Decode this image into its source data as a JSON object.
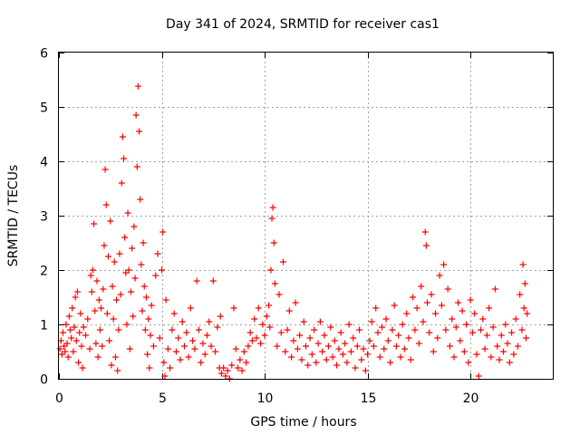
{
  "chart_data": {
    "type": "scatter",
    "title": "Day 341 of 2024, SRMTID for receiver cas1",
    "xlabel": "GPS time / hours",
    "ylabel": "SRMTID / TECUs",
    "xlim": [
      0,
      24
    ],
    "ylim": [
      0,
      6
    ],
    "xticks": [
      0,
      5,
      10,
      15,
      20
    ],
    "xtick_labels": [
      "0",
      "5",
      "10",
      "15",
      "20"
    ],
    "yticks": [
      0,
      1,
      2,
      3,
      4,
      5,
      6
    ],
    "ytick_labels": [
      "0",
      "1",
      "2",
      "3",
      "4",
      "5",
      "6"
    ],
    "grid": true,
    "marker": "+",
    "color": "#ff0000",
    "series": [
      {
        "name": "SRMTID",
        "points": [
          [
            0.05,
            0.55
          ],
          [
            0.1,
            0.7
          ],
          [
            0.15,
            0.45
          ],
          [
            0.2,
            0.85
          ],
          [
            0.25,
            0.6
          ],
          [
            0.3,
            0.5
          ],
          [
            0.35,
            1.0
          ],
          [
            0.4,
            0.65
          ],
          [
            0.45,
            0.4
          ],
          [
            0.5,
            1.15
          ],
          [
            0.55,
            0.9
          ],
          [
            0.6,
            0.75
          ],
          [
            0.65,
            1.3
          ],
          [
            0.7,
            0.5
          ],
          [
            0.75,
            0.95
          ],
          [
            0.8,
            1.5
          ],
          [
            0.85,
            0.7
          ],
          [
            0.9,
            1.6
          ],
          [
            0.95,
            0.3
          ],
          [
            1.0,
            0.85
          ],
          [
            1.05,
            1.2
          ],
          [
            1.1,
            0.6
          ],
          [
            1.15,
            0.2
          ],
          [
            1.2,
            0.95
          ],
          [
            1.3,
            0.8
          ],
          [
            1.4,
            1.1
          ],
          [
            1.5,
            0.55
          ],
          [
            1.55,
            1.9
          ],
          [
            1.6,
            1.6
          ],
          [
            1.65,
            2.0
          ],
          [
            1.7,
            2.85
          ],
          [
            1.75,
            1.25
          ],
          [
            1.8,
            0.65
          ],
          [
            1.85,
            1.8
          ],
          [
            1.9,
            0.4
          ],
          [
            1.95,
            1.45
          ],
          [
            2.0,
            0.9
          ],
          [
            2.05,
            1.3
          ],
          [
            2.1,
            0.6
          ],
          [
            2.15,
            1.65
          ],
          [
            2.2,
            2.45
          ],
          [
            2.25,
            3.85
          ],
          [
            2.3,
            3.2
          ],
          [
            2.35,
            1.2
          ],
          [
            2.4,
            2.25
          ],
          [
            2.45,
            0.7
          ],
          [
            2.5,
            2.9
          ],
          [
            2.55,
            0.25
          ],
          [
            2.6,
            1.7
          ],
          [
            2.65,
            1.1
          ],
          [
            2.7,
            2.15
          ],
          [
            2.75,
            0.4
          ],
          [
            2.8,
            1.45
          ],
          [
            2.85,
            0.15
          ],
          [
            2.9,
            0.9
          ],
          [
            2.95,
            2.3
          ],
          [
            3.0,
            1.55
          ],
          [
            3.05,
            3.6
          ],
          [
            3.1,
            4.45
          ],
          [
            3.15,
            4.05
          ],
          [
            3.2,
            2.6
          ],
          [
            3.25,
            1.95
          ],
          [
            3.3,
            1.0
          ],
          [
            3.35,
            3.05
          ],
          [
            3.4,
            2.0
          ],
          [
            3.45,
            0.55
          ],
          [
            3.5,
            1.6
          ],
          [
            3.55,
            2.4
          ],
          [
            3.6,
            1.15
          ],
          [
            3.65,
            2.8
          ],
          [
            3.7,
            1.85
          ],
          [
            3.75,
            4.85
          ],
          [
            3.8,
            3.9
          ],
          [
            3.85,
            5.38
          ],
          [
            3.9,
            4.55
          ],
          [
            3.95,
            3.3
          ],
          [
            4.0,
            2.1
          ],
          [
            4.05,
            1.25
          ],
          [
            4.1,
            2.5
          ],
          [
            4.15,
            1.7
          ],
          [
            4.2,
            0.9
          ],
          [
            4.25,
            1.5
          ],
          [
            4.3,
            0.45
          ],
          [
            4.35,
            1.1
          ],
          [
            4.4,
            0.2
          ],
          [
            4.45,
            0.8
          ],
          [
            4.5,
            1.35
          ],
          [
            4.6,
            0.6
          ],
          [
            4.7,
            1.9
          ],
          [
            4.8,
            2.3
          ],
          [
            4.9,
            0.75
          ],
          [
            5.0,
            2.0
          ],
          [
            5.05,
            2.7
          ],
          [
            5.1,
            0.3
          ],
          [
            5.15,
            0.05
          ],
          [
            5.2,
            1.45
          ],
          [
            5.3,
            0.55
          ],
          [
            5.4,
            0.2
          ],
          [
            5.5,
            0.9
          ],
          [
            5.6,
            1.2
          ],
          [
            5.7,
            0.5
          ],
          [
            5.8,
            0.75
          ],
          [
            5.9,
            0.35
          ],
          [
            6.0,
            1.05
          ],
          [
            6.1,
            0.6
          ],
          [
            6.2,
            0.85
          ],
          [
            6.3,
            0.4
          ],
          [
            6.4,
            1.3
          ],
          [
            6.5,
            0.7
          ],
          [
            6.6,
            0.55
          ],
          [
            6.7,
            1.8
          ],
          [
            6.8,
            0.9
          ],
          [
            6.9,
            0.3
          ],
          [
            7.0,
            0.65
          ],
          [
            7.1,
            0.45
          ],
          [
            7.2,
            0.8
          ],
          [
            7.3,
            1.05
          ],
          [
            7.4,
            0.6
          ],
          [
            7.5,
            1.8
          ],
          [
            7.6,
            0.5
          ],
          [
            7.7,
            0.95
          ],
          [
            7.8,
            0.2
          ],
          [
            7.85,
            1.15
          ],
          [
            7.9,
            0.1
          ],
          [
            8.0,
            0.2
          ],
          [
            8.1,
            0.05
          ],
          [
            8.2,
            0.15
          ],
          [
            8.3,
            0.0
          ],
          [
            8.4,
            0.25
          ],
          [
            8.5,
            1.3
          ],
          [
            8.6,
            0.55
          ],
          [
            8.7,
            0.2
          ],
          [
            8.8,
            0.35
          ],
          [
            8.9,
            0.15
          ],
          [
            9.0,
            0.5
          ],
          [
            9.1,
            0.3
          ],
          [
            9.2,
            0.6
          ],
          [
            9.3,
            0.85
          ],
          [
            9.4,
            0.7
          ],
          [
            9.5,
            1.1
          ],
          [
            9.6,
            0.75
          ],
          [
            9.7,
            1.3
          ],
          [
            9.8,
            0.65
          ],
          [
            9.9,
            1.0
          ],
          [
            10.0,
            0.8
          ],
          [
            10.1,
            1.15
          ],
          [
            10.2,
            1.35
          ],
          [
            10.25,
            0.95
          ],
          [
            10.3,
            2.0
          ],
          [
            10.35,
            2.95
          ],
          [
            10.4,
            3.15
          ],
          [
            10.45,
            2.5
          ],
          [
            10.5,
            1.75
          ],
          [
            10.6,
            0.6
          ],
          [
            10.7,
            1.55
          ],
          [
            10.8,
            0.85
          ],
          [
            10.9,
            2.15
          ],
          [
            11.0,
            0.5
          ],
          [
            11.1,
            0.9
          ],
          [
            11.2,
            1.25
          ],
          [
            11.3,
            0.4
          ],
          [
            11.4,
            0.7
          ],
          [
            11.5,
            1.4
          ],
          [
            11.6,
            0.55
          ],
          [
            11.7,
            0.8
          ],
          [
            11.8,
            0.35
          ],
          [
            11.9,
            1.05
          ],
          [
            12.0,
            0.6
          ],
          [
            12.1,
            0.25
          ],
          [
            12.2,
            0.75
          ],
          [
            12.3,
            0.45
          ],
          [
            12.4,
            0.9
          ],
          [
            12.5,
            0.3
          ],
          [
            12.6,
            0.65
          ],
          [
            12.7,
            1.05
          ],
          [
            12.8,
            0.5
          ],
          [
            12.9,
            0.8
          ],
          [
            13.0,
            0.35
          ],
          [
            13.1,
            0.6
          ],
          [
            13.2,
            0.95
          ],
          [
            13.3,
            0.4
          ],
          [
            13.4,
            0.7
          ],
          [
            13.5,
            0.25
          ],
          [
            13.6,
            0.55
          ],
          [
            13.7,
            0.85
          ],
          [
            13.8,
            0.45
          ],
          [
            13.9,
            0.65
          ],
          [
            14.0,
            0.3
          ],
          [
            14.1,
            1.0
          ],
          [
            14.2,
            0.5
          ],
          [
            14.3,
            0.75
          ],
          [
            14.4,
            0.2
          ],
          [
            14.5,
            0.6
          ],
          [
            14.6,
            0.9
          ],
          [
            14.7,
            0.35
          ],
          [
            14.8,
            0.55
          ],
          [
            14.9,
            0.15
          ],
          [
            15.0,
            0.45
          ],
          [
            15.1,
            0.7
          ],
          [
            15.2,
            1.05
          ],
          [
            15.3,
            0.6
          ],
          [
            15.4,
            1.3
          ],
          [
            15.5,
            0.85
          ],
          [
            15.6,
            0.4
          ],
          [
            15.7,
            0.95
          ],
          [
            15.8,
            0.55
          ],
          [
            15.9,
            1.1
          ],
          [
            16.0,
            0.7
          ],
          [
            16.1,
            0.3
          ],
          [
            16.2,
            0.9
          ],
          [
            16.3,
            1.35
          ],
          [
            16.4,
            0.6
          ],
          [
            16.5,
            0.8
          ],
          [
            16.6,
            0.4
          ],
          [
            16.7,
            1.0
          ],
          [
            16.8,
            0.55
          ],
          [
            16.9,
            1.2
          ],
          [
            17.0,
            0.75
          ],
          [
            17.1,
            0.35
          ],
          [
            17.2,
            1.5
          ],
          [
            17.3,
            0.9
          ],
          [
            17.4,
            1.3
          ],
          [
            17.5,
            0.65
          ],
          [
            17.6,
            1.7
          ],
          [
            17.7,
            1.05
          ],
          [
            17.8,
            2.7
          ],
          [
            17.85,
            2.45
          ],
          [
            17.9,
            1.4
          ],
          [
            18.0,
            0.85
          ],
          [
            18.1,
            1.55
          ],
          [
            18.2,
            0.5
          ],
          [
            18.3,
            1.2
          ],
          [
            18.4,
            0.75
          ],
          [
            18.5,
            1.9
          ],
          [
            18.6,
            1.35
          ],
          [
            18.7,
            2.1
          ],
          [
            18.8,
            0.9
          ],
          [
            18.9,
            1.65
          ],
          [
            19.0,
            0.6
          ],
          [
            19.1,
            1.1
          ],
          [
            19.2,
            0.4
          ],
          [
            19.3,
            0.95
          ],
          [
            19.4,
            1.4
          ],
          [
            19.5,
            0.7
          ],
          [
            19.6,
            1.25
          ],
          [
            19.7,
            0.5
          ],
          [
            19.8,
            1.0
          ],
          [
            19.9,
            0.3
          ],
          [
            20.0,
            1.45
          ],
          [
            20.1,
            0.85
          ],
          [
            20.2,
            1.2
          ],
          [
            20.3,
            0.45
          ],
          [
            20.4,
            0.05
          ],
          [
            20.5,
            0.9
          ],
          [
            20.6,
            1.1
          ],
          [
            20.7,
            0.55
          ],
          [
            20.8,
            0.8
          ],
          [
            20.9,
            1.3
          ],
          [
            21.0,
            0.4
          ],
          [
            21.1,
            0.95
          ],
          [
            21.2,
            1.65
          ],
          [
            21.3,
            0.6
          ],
          [
            21.4,
            0.35
          ],
          [
            21.5,
            0.8
          ],
          [
            21.6,
            0.5
          ],
          [
            21.7,
            1.0
          ],
          [
            21.8,
            0.65
          ],
          [
            21.9,
            0.3
          ],
          [
            22.0,
            0.85
          ],
          [
            22.1,
            0.45
          ],
          [
            22.2,
            1.1
          ],
          [
            22.3,
            0.6
          ],
          [
            22.4,
            1.55
          ],
          [
            22.5,
            0.9
          ],
          [
            22.55,
            2.1
          ],
          [
            22.6,
            1.3
          ],
          [
            22.65,
            1.75
          ],
          [
            22.7,
            0.75
          ],
          [
            22.75,
            1.2
          ]
        ]
      }
    ]
  }
}
